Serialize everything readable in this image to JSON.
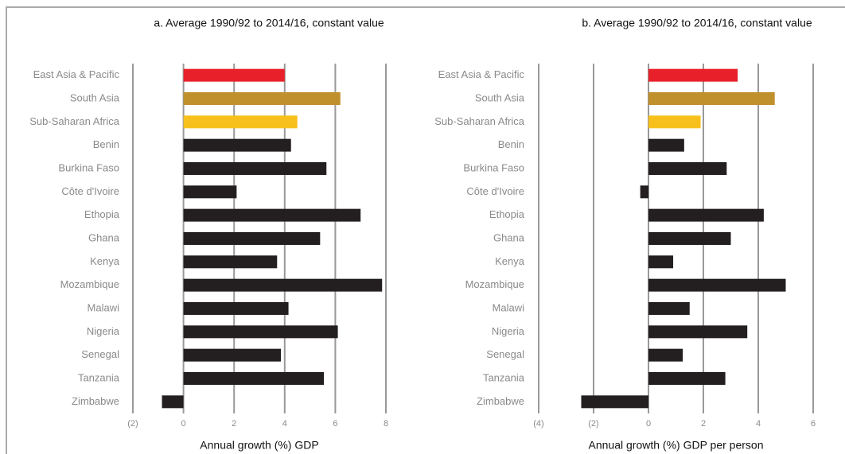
{
  "chart_data": [
    {
      "type": "bar",
      "orientation": "horizontal",
      "title": "a. Average 1990/92 to 2014/16, constant value",
      "x_label": "Annual growth (%) GDP",
      "categories": [
        "East Asia & Pacific",
        "South Asia",
        "Sub-Saharan Africa",
        "Benin",
        "Burkina Faso",
        "Côte d'Ivoire",
        "Ethopia",
        "Ghana",
        "Kenya",
        "Mozambique",
        "Malawi",
        "Nigeria",
        "Senegal",
        "Tanzania",
        "Zimbabwe"
      ],
      "values": [
        4.0,
        6.2,
        4.5,
        4.25,
        5.65,
        2.1,
        7.0,
        5.4,
        3.7,
        7.85,
        4.15,
        6.1,
        3.85,
        5.55,
        -0.85
      ],
      "colors": [
        "#e8202a",
        "#c0902c",
        "#f8c01c",
        "#231f20",
        "#231f20",
        "#231f20",
        "#231f20",
        "#231f20",
        "#231f20",
        "#231f20",
        "#231f20",
        "#231f20",
        "#231f20",
        "#231f20",
        "#231f20"
      ],
      "xlim": [
        -2,
        8
      ],
      "xticks": [
        {
          "value": -2,
          "label": "(2)"
        },
        0,
        2,
        4,
        6,
        8
      ],
      "grid": true
    },
    {
      "type": "bar",
      "orientation": "horizontal",
      "title": "b. Average 1990/92 to 2014/16, constant value",
      "x_label": "Annual growth (%) GDP per person",
      "categories": [
        "East Asia & Pacific",
        "South Asia",
        "Sub-Saharan Africa",
        "Benin",
        "Burkina Faso",
        "Côte d'Ivoire",
        "Ethopia",
        "Ghana",
        "Kenya",
        "Mozambique",
        "Malawi",
        "Nigeria",
        "Senegal",
        "Tanzania",
        "Zimbabwe"
      ],
      "values": [
        3.25,
        4.6,
        1.9,
        1.3,
        2.85,
        -0.3,
        4.2,
        3.0,
        0.9,
        5.0,
        1.5,
        3.6,
        1.25,
        2.8,
        -2.45
      ],
      "colors": [
        "#e8202a",
        "#c0902c",
        "#f8c01c",
        "#231f20",
        "#231f20",
        "#231f20",
        "#231f20",
        "#231f20",
        "#231f20",
        "#231f20",
        "#231f20",
        "#231f20",
        "#231f20",
        "#231f20",
        "#231f20"
      ],
      "xlim": [
        -4,
        6
      ],
      "xticks": [
        {
          "value": -4,
          "label": "(4)"
        },
        {
          "value": -2,
          "label": "(2)"
        },
        0,
        2,
        4,
        6
      ],
      "grid": true
    }
  ]
}
